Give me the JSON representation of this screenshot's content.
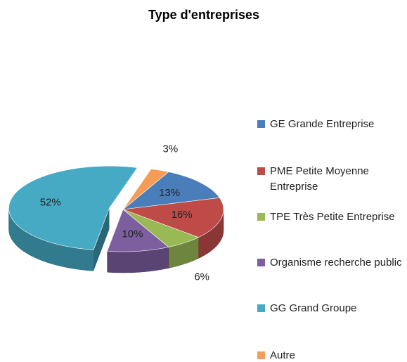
{
  "chart_data": {
    "type": "pie",
    "title": "Type d'entreprises",
    "categories": [
      "GE Grande Entreprise",
      "PME Petite Moyenne Entreprise",
      "TPE Très Petite Entreprise",
      "Organisme recherche public",
      "GG Grand Groupe",
      "Autre"
    ],
    "values": [
      13,
      16,
      6,
      10,
      52,
      3
    ],
    "value_labels": [
      "13%",
      "16%",
      "6%",
      "10%",
      "52%",
      "3%"
    ],
    "colors": [
      "#4a7ebb",
      "#be4b48",
      "#98b954",
      "#7d5fa0",
      "#46aac5",
      "#f59d56"
    ],
    "legend": "right"
  }
}
